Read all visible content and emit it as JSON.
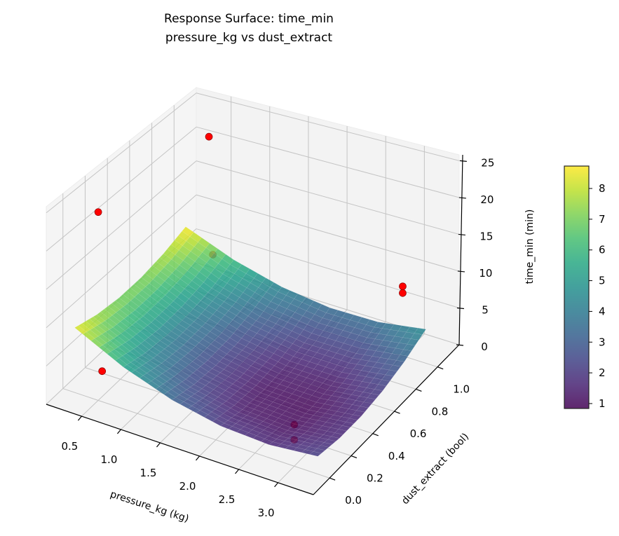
{
  "chart_data": {
    "type": "surface3d",
    "title": [
      "Response Surface: time_min",
      "pressure_kg vs dust_extract"
    ],
    "xlabel": "pressure_kg (kg)",
    "ylabel": "dust_extract (bool)",
    "zlabel": "time_min (min)",
    "xlim": [
      0.05,
      3.45
    ],
    "ylim": [
      -0.15,
      1.2
    ],
    "zlim": [
      0,
      25.8
    ],
    "xticks": [
      "0.5",
      "1.0",
      "1.5",
      "2.0",
      "2.5",
      "3.0"
    ],
    "yticks": [
      "0.0",
      "0.2",
      "0.4",
      "0.6",
      "0.8",
      "1.0"
    ],
    "zticks": [
      "0",
      "5",
      "10",
      "15",
      "20",
      "25"
    ],
    "grid": true,
    "colormap": "viridis",
    "surface_alpha": 0.85,
    "surface": {
      "x": [
        0.2,
        0.82,
        1.44,
        2.06,
        2.68,
        3.3
      ],
      "y": [
        0,
        0.2,
        0.4,
        0.6,
        0.8,
        1.0
      ],
      "z": [
        [
          8.55,
          7.63,
          7.19,
          7.23,
          7.75,
          8.74
        ],
        [
          5.44,
          4.61,
          4.25,
          4.38,
          4.98,
          6.07
        ],
        [
          3.25,
          2.5,
          2.23,
          2.44,
          3.14,
          4.31
        ],
        [
          1.98,
          1.32,
          1.13,
          1.43,
          2.21,
          3.47
        ],
        [
          1.64,
          1.06,
          0.97,
          1.35,
          2.22,
          3.56
        ],
        [
          2.21,
          1.73,
          1.72,
          2.19,
          3.14,
          4.57
        ]
      ]
    },
    "points": [
      {
        "x": 0.5,
        "y": 1.0,
        "z": 22.6,
        "behind_surface": false
      },
      {
        "x": 0.5,
        "y": 0.0,
        "z": 24.7,
        "behind_surface": false
      },
      {
        "x": 0.55,
        "y": 1.0,
        "z": 5.9,
        "behind_surface": true
      },
      {
        "x": 0.55,
        "y": 0.0,
        "z": 4.0,
        "behind_surface": true
      },
      {
        "x": 3.0,
        "y": 1.0,
        "z": 9.4,
        "behind_surface": false
      },
      {
        "x": 3.0,
        "y": 1.0,
        "z": 8.5,
        "behind_surface": false
      },
      {
        "x": 3.0,
        "y": 0.0,
        "z": 5.2,
        "behind_surface": true
      },
      {
        "x": 3.0,
        "y": 0.0,
        "z": 3.3,
        "behind_surface": true
      }
    ],
    "point_color": "#ff0000",
    "colorbar": {
      "vmin": 0.84,
      "vmax": 8.73,
      "ticks": [
        "1",
        "2",
        "3",
        "4",
        "5",
        "6",
        "7",
        "8"
      ]
    }
  }
}
